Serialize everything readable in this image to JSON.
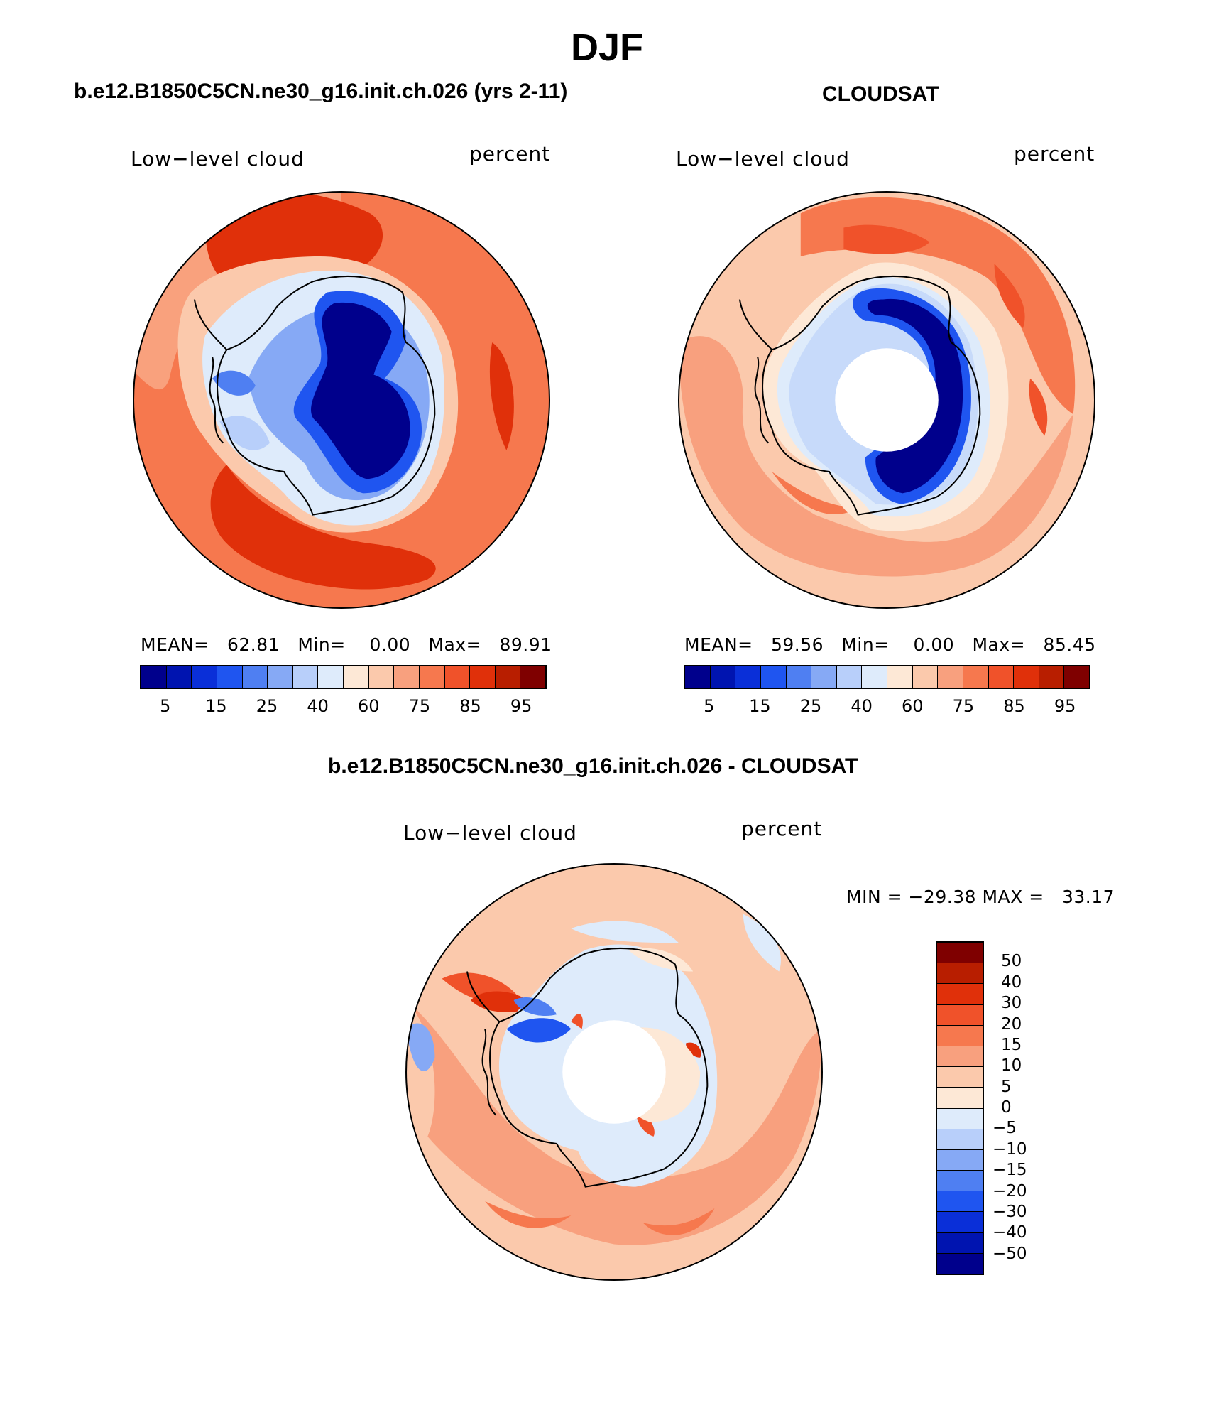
{
  "title": "DJF",
  "panels": [
    {
      "title": "b.e12.B1850C5CN.ne30_g16.init.ch.026 (yrs 2-11)",
      "variable": "Low−level cloud",
      "units": "percent",
      "stats": "MEAN=   62.81   Min=    0.00   Max=   89.91"
    },
    {
      "title": "CLOUDSAT",
      "variable": "Low−level cloud",
      "units": "percent",
      "stats": "MEAN=   59.56   Min=    0.00   Max=   85.45"
    }
  ],
  "diff_panel": {
    "title": "b.e12.B1850C5CN.ne30_g16.init.ch.026 - CLOUDSAT",
    "variable": "Low−level cloud",
    "units": "percent",
    "stats": "MIN = −29.38 MAX =   33.17"
  },
  "colorbar_ticks": [
    "5",
    "15",
    "25",
    "40",
    "60",
    "75",
    "85",
    "95"
  ],
  "diff_colorbar_ticks": [
    "50",
    "40",
    "30",
    "20",
    "15",
    "10",
    "5",
    "0",
    "−5",
    "−10",
    "−15",
    "−20",
    "−30",
    "−40",
    "−50"
  ],
  "colors": {
    "blue_red_scale": [
      "#00008c",
      "#0014b0",
      "#0a2fd8",
      "#1f55f0",
      "#4f7ff2",
      "#86a9f5",
      "#b8cffa",
      "#deebfb",
      "#fde8d6",
      "#fbc9ac",
      "#f8a07e",
      "#f6784e",
      "#f0522a",
      "#e0300a",
      "#b81e00",
      "#7f0000"
    ],
    "diff_scale_top_to_bottom": [
      "#7f0000",
      "#b81e00",
      "#e0300a",
      "#f0522a",
      "#f6784e",
      "#f8a07e",
      "#fbc9ac",
      "#fde8d6",
      "#deebfb",
      "#b8cffa",
      "#86a9f5",
      "#4f7ff2",
      "#1f55f0",
      "#0a2fd8",
      "#0014b0",
      "#00008c"
    ],
    "antarctica_outline": "#000000"
  }
}
